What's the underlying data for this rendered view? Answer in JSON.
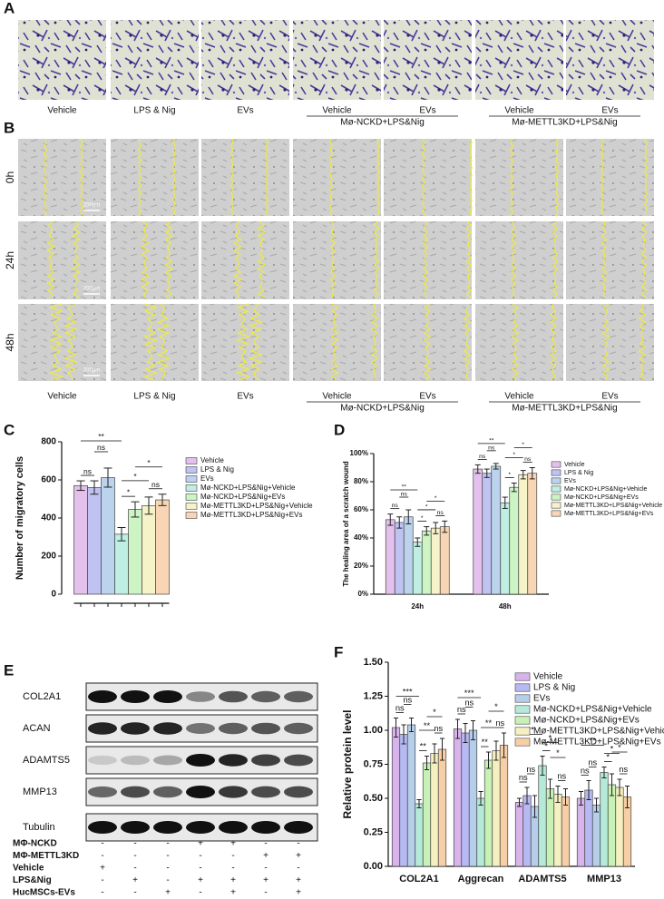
{
  "panel_labels": [
    "A",
    "B",
    "C",
    "D",
    "E",
    "F"
  ],
  "panel_a": {
    "labels": [
      "Vehicle",
      "LPS & Nig",
      "EVs",
      "Vehicle",
      "EVs",
      "Vehicle",
      "EVs"
    ],
    "group_labels": [
      "Mø-NCKD+LPS&Nig",
      "Mø-METTL3KD+LPS&Nig"
    ]
  },
  "panel_b": {
    "rows": [
      "0h",
      "24h",
      "48h"
    ],
    "scale_bars": [
      "200μm",
      "200μm",
      "200μm"
    ],
    "labels": [
      "Vehicle",
      "LPS & Nig",
      "EVs",
      "Vehicle",
      "EVs",
      "Vehicle",
      "EVs"
    ],
    "group_labels": [
      "Mø-NCKD+LPS&Nig",
      "Mø-METTL3KD+LPS&Nig"
    ]
  },
  "panel_e": {
    "proteins": [
      "COL2A1",
      "ACAN",
      "ADAMTS5",
      "MMP13",
      "Tubulin"
    ],
    "conditions": [
      {
        "name": "MΦ-NCKD",
        "marks": [
          "-",
          "-",
          "-",
          "+",
          "+",
          "-",
          "-"
        ]
      },
      {
        "name": "MΦ-METTL3KD",
        "marks": [
          "-",
          "-",
          "-",
          "-",
          "-",
          "+",
          "+"
        ]
      },
      {
        "name": "Vehicle",
        "marks": [
          "+",
          "-",
          "-",
          "-",
          "-",
          "-",
          "-"
        ]
      },
      {
        "name": "LPS&Nig",
        "marks": [
          "-",
          "+",
          "-",
          "+",
          "+",
          "+",
          "+"
        ]
      },
      {
        "name": "HucMSCs-EVs",
        "marks": [
          "-",
          "-",
          "+",
          "-",
          "+",
          "-",
          "+"
        ]
      }
    ]
  },
  "chart_data": [
    {
      "type": "bar",
      "ylabel": "Number of migratory cells",
      "categories": [
        null
      ],
      "series": [
        {
          "name": "Vehicle",
          "color": "#e4c1ec",
          "values": [
            570
          ],
          "errors": [
            25
          ]
        },
        {
          "name": "LPS & Nig",
          "color": "#bfc3f2",
          "values": [
            560
          ],
          "errors": [
            35
          ]
        },
        {
          "name": "EVs",
          "color": "#bcd3ee",
          "values": [
            612
          ],
          "errors": [
            50
          ]
        },
        {
          "name": "Mø-NCKD+LPS&Nig+Vehicle",
          "color": "#bfeee3",
          "values": [
            315
          ],
          "errors": [
            35
          ]
        },
        {
          "name": "Mø-NCKD+LPS&Nig+EVs",
          "color": "#cdf5c4",
          "values": [
            445
          ],
          "errors": [
            40
          ]
        },
        {
          "name": "Mø-METTL3KD+LPS&Nig+Vehicle",
          "color": "#f7f3c9",
          "values": [
            465
          ],
          "errors": [
            45
          ]
        },
        {
          "name": "Mø-METTL3KD+LPS&Nig+EVs",
          "color": "#f8d6b5",
          "values": [
            495
          ],
          "errors": [
            30
          ]
        }
      ],
      "ylim": [
        0,
        800
      ],
      "yticks": [
        0,
        200,
        400,
        600,
        800
      ],
      "annotations": [
        [
          "**",
          "ns",
          "ns",
          "*",
          "*",
          "*",
          "ns"
        ]
      ]
    },
    {
      "type": "bar",
      "ylabel": "The healing area of a scratch wound",
      "categories": [
        "24h",
        "48h"
      ],
      "series": [
        {
          "name": "Vehicle",
          "color": "#e4c1ec",
          "values": [
            53,
            89
          ],
          "errors": [
            4,
            3
          ]
        },
        {
          "name": "LPS & Nig",
          "color": "#bfc3f2",
          "values": [
            51,
            86
          ],
          "errors": [
            4,
            3
          ]
        },
        {
          "name": "EVs",
          "color": "#bcd3ee",
          "values": [
            55,
            91
          ],
          "errors": [
            5,
            2
          ]
        },
        {
          "name": "Mø-NCKD+LPS&Nig+Vehicle",
          "color": "#bfeee3",
          "values": [
            37,
            65
          ],
          "errors": [
            3,
            4
          ]
        },
        {
          "name": "Mø-NCKD+LPS&Nig+EVs",
          "color": "#cdf5c4",
          "values": [
            45,
            76
          ],
          "errors": [
            3,
            3
          ]
        },
        {
          "name": "Mø-METTL3KD+LPS&Nig+Vehicle",
          "color": "#f7f3c9",
          "values": [
            47,
            85
          ],
          "errors": [
            4,
            3
          ]
        },
        {
          "name": "Mø-METTL3KD+LPS&Nig+EVs",
          "color": "#f8d6b5",
          "values": [
            48,
            86
          ],
          "errors": [
            4,
            4
          ]
        }
      ],
      "ylim": [
        0,
        100
      ],
      "yticks": [
        {
          "value": 0,
          "label": "0%"
        },
        {
          "value": 20,
          "label": "20%"
        },
        {
          "value": 40,
          "label": "40%"
        },
        {
          "value": 60,
          "label": "60%"
        },
        {
          "value": 80,
          "label": "80%"
        },
        {
          "value": 100,
          "label": "100%"
        }
      ],
      "annotations": [
        [
          "**",
          "ns",
          "ns",
          "*",
          "*",
          "*",
          "ns"
        ],
        [
          "**",
          "ns",
          "ns",
          "*",
          "*",
          "*",
          "ns"
        ]
      ]
    },
    {
      "type": "bar",
      "ylabel": "Relative protein level",
      "categories": [
        "COL2A1",
        "Aggrecan",
        "ADAMTS5",
        "MMP13"
      ],
      "series": [
        {
          "name": "Vehicle",
          "color": "#d8b4ec",
          "values": [
            1.02,
            1.01,
            0.47,
            0.5
          ],
          "errors": [
            0.07,
            0.07,
            0.03,
            0.05
          ]
        },
        {
          "name": "LPS & Nig",
          "color": "#b7b9f3",
          "values": [
            0.97,
            0.98,
            0.52,
            0.56
          ],
          "errors": [
            0.07,
            0.07,
            0.06,
            0.07
          ]
        },
        {
          "name": "EVs",
          "color": "#b5cfea",
          "values": [
            1.04,
            1.0,
            0.44,
            0.45
          ],
          "errors": [
            0.05,
            0.07,
            0.08,
            0.05
          ]
        },
        {
          "name": "Mø-NCKD+LPS&Nig+Vehicle",
          "color": "#b5ead9",
          "values": [
            0.46,
            0.5,
            0.74,
            0.69
          ],
          "errors": [
            0.03,
            0.05,
            0.07,
            0.04
          ]
        },
        {
          "name": "Mø-NCKD+LPS&Nig+EVs",
          "color": "#c8f2b5",
          "values": [
            0.76,
            0.78,
            0.57,
            0.6
          ],
          "errors": [
            0.05,
            0.06,
            0.07,
            0.08
          ]
        },
        {
          "name": "Mø-METTL3KD+LPS&Nig+Vehicle",
          "color": "#f6efc0",
          "values": [
            0.83,
            0.85,
            0.53,
            0.58
          ],
          "errors": [
            0.07,
            0.07,
            0.06,
            0.06
          ]
        },
        {
          "name": "Mø-METTL3KD+LPS&Nig+EVs",
          "color": "#f7cfa6",
          "values": [
            0.86,
            0.89,
            0.51,
            0.51
          ],
          "errors": [
            0.08,
            0.09,
            0.06,
            0.08
          ]
        }
      ],
      "ylim": [
        0,
        1.5
      ],
      "yticks": [
        {
          "value": 0,
          "label": "0.00"
        },
        {
          "value": 0.25,
          "label": "0.25"
        },
        {
          "value": 0.5,
          "label": "0.50"
        },
        {
          "value": 0.75,
          "label": "0.75"
        },
        {
          "value": 1,
          "label": "1.00"
        },
        {
          "value": 1.25,
          "label": "1.25"
        },
        {
          "value": 1.5,
          "label": "1.50"
        }
      ],
      "annotations": [
        [
          "***",
          "ns",
          "ns",
          "**",
          "**",
          "*",
          "ns"
        ],
        [
          "***",
          "ns",
          "ns",
          "**",
          "**",
          "*",
          "ns"
        ],
        [
          "**",
          "ns",
          "ns",
          "*",
          "*",
          "*",
          "ns"
        ],
        [
          "**",
          "ns",
          "ns",
          "*",
          "*",
          "*",
          "ns"
        ]
      ]
    }
  ]
}
